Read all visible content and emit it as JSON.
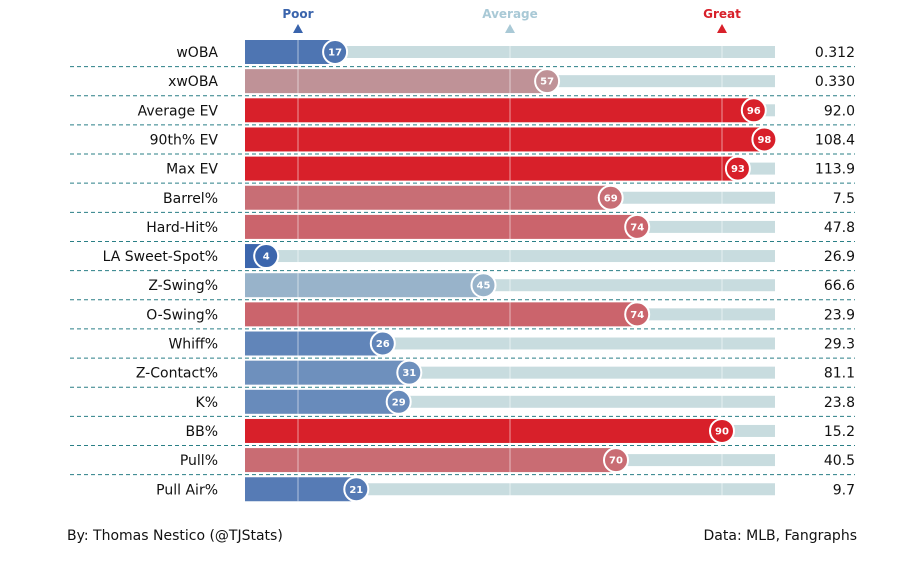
{
  "chart_data": {
    "type": "bar",
    "orientation": "horizontal",
    "title": "",
    "xlim": [
      0,
      100
    ],
    "scale_markers": [
      {
        "label": "Poor",
        "value": 10,
        "color": "#3a64ac"
      },
      {
        "label": "Average",
        "value": 50,
        "color": "#a9c9d6"
      },
      {
        "label": "Great",
        "value": 90,
        "color": "#d8202a"
      }
    ],
    "rows": [
      {
        "metric": "wOBA",
        "percentile": 17,
        "value": "0.312"
      },
      {
        "metric": "xwOBA",
        "percentile": 57,
        "value": "0.330"
      },
      {
        "metric": "Average EV",
        "percentile": 96,
        "value": "92.0"
      },
      {
        "metric": "90th% EV",
        "percentile": 98,
        "value": "108.4"
      },
      {
        "metric": "Max EV",
        "percentile": 93,
        "value": "113.9"
      },
      {
        "metric": "Barrel%",
        "percentile": 69,
        "value": "7.5"
      },
      {
        "metric": "Hard-Hit%",
        "percentile": 74,
        "value": "47.8"
      },
      {
        "metric": "LA Sweet-Spot%",
        "percentile": 4,
        "value": "26.9"
      },
      {
        "metric": "Z-Swing%",
        "percentile": 45,
        "value": "66.6"
      },
      {
        "metric": "O-Swing%",
        "percentile": 74,
        "value": "23.9"
      },
      {
        "metric": "Whiff%",
        "percentile": 26,
        "value": "29.3"
      },
      {
        "metric": "Z-Contact%",
        "percentile": 31,
        "value": "81.1"
      },
      {
        "metric": "K%",
        "percentile": 29,
        "value": "23.8"
      },
      {
        "metric": "BB%",
        "percentile": 90,
        "value": "15.2"
      },
      {
        "metric": "Pull%",
        "percentile": 70,
        "value": "40.5"
      },
      {
        "metric": "Pull Air%",
        "percentile": 21,
        "value": "9.7"
      }
    ],
    "colors": {
      "track": "#c8dcdf",
      "divider": "#2a7f86",
      "low": "#3a64ac",
      "mid": "#b8b0b4",
      "high": "#d8202a"
    }
  },
  "footer": {
    "credit": "By: Thomas Nestico (@TJStats)",
    "source": "Data: MLB, Fangraphs"
  }
}
